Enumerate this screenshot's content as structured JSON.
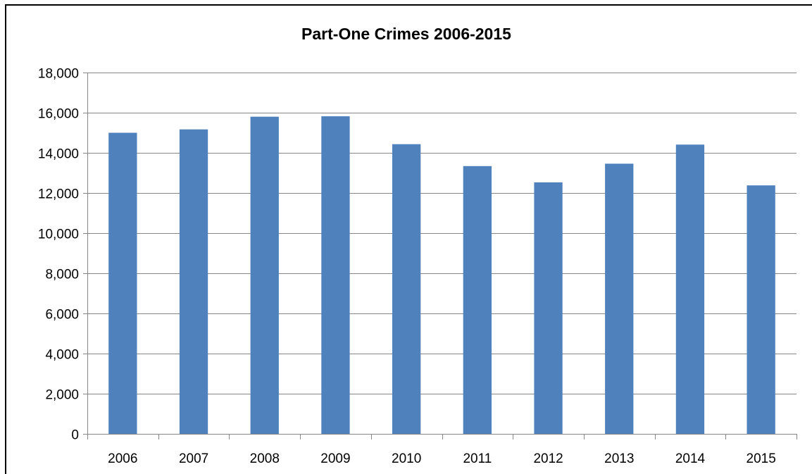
{
  "chart_data": {
    "type": "bar",
    "title": "Part-One Crimes 2006-2015",
    "categories": [
      "2006",
      "2007",
      "2008",
      "2009",
      "2010",
      "2011",
      "2012",
      "2013",
      "2014",
      "2015"
    ],
    "values": [
      15000,
      15170,
      15800,
      15820,
      14430,
      13340,
      12530,
      13460,
      14410,
      12380
    ],
    "ylim": [
      0,
      18000
    ],
    "ytick_values": [
      0,
      2000,
      4000,
      6000,
      8000,
      10000,
      12000,
      14000,
      16000,
      18000
    ],
    "ytick_labels": [
      "0",
      "2,000",
      "4,000",
      "6,000",
      "8,000",
      "10,000",
      "12,000",
      "14,000",
      "16,000",
      "18,000"
    ],
    "xlabel": "",
    "ylabel": "",
    "grid": true,
    "legend": "none",
    "colors": {
      "bar": "#4F81BD",
      "gridline": "#868686",
      "axis": "#868686"
    }
  }
}
